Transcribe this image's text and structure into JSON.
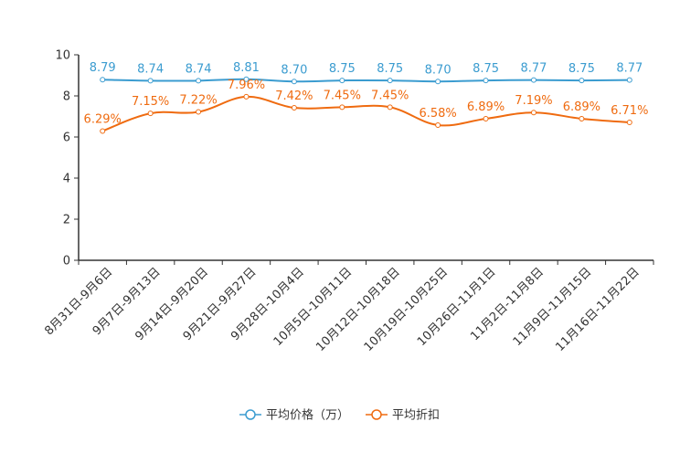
{
  "chart_data": {
    "type": "line",
    "title": "",
    "xlabel": "",
    "ylabel": "",
    "ylim": [
      0,
      10
    ],
    "yticks": [
      0,
      2,
      4,
      6,
      8,
      10
    ],
    "categories": [
      "8月31日-9月6日",
      "9月7日-9月13日",
      "9月14日-9月20日",
      "9月21日-9月27日",
      "9月28日-10月4日",
      "10月5日-10月11日",
      "10月12日-10月18日",
      "10月19日-10月25日",
      "10月26日-11月1日",
      "11月2日-11月8日",
      "11月9日-11月15日",
      "11月16日-11月22日"
    ],
    "series": [
      {
        "name": "平均价格（万）",
        "color": "#3b9cd0",
        "values": [
          8.79,
          8.74,
          8.74,
          8.81,
          8.7,
          8.75,
          8.75,
          8.7,
          8.75,
          8.77,
          8.75,
          8.77
        ],
        "labels": [
          "8.79",
          "8.74",
          "8.74",
          "8.81",
          "8.70",
          "8.75",
          "8.75",
          "8.70",
          "8.75",
          "8.77",
          "8.75",
          "8.77"
        ]
      },
      {
        "name": "平均折扣",
        "color": "#ef6b10",
        "values": [
          6.29,
          7.15,
          7.22,
          7.96,
          7.42,
          7.45,
          7.45,
          6.58,
          6.89,
          7.19,
          6.89,
          6.71
        ],
        "labels": [
          "6.29%",
          "7.15%",
          "7.22%",
          "7.96%",
          "7.42%",
          "7.45%",
          "7.45%",
          "6.58%",
          "6.89%",
          "7.19%",
          "6.89%",
          "6.71%"
        ]
      }
    ],
    "legend": {
      "position": "bottom-center"
    },
    "grid": false
  }
}
